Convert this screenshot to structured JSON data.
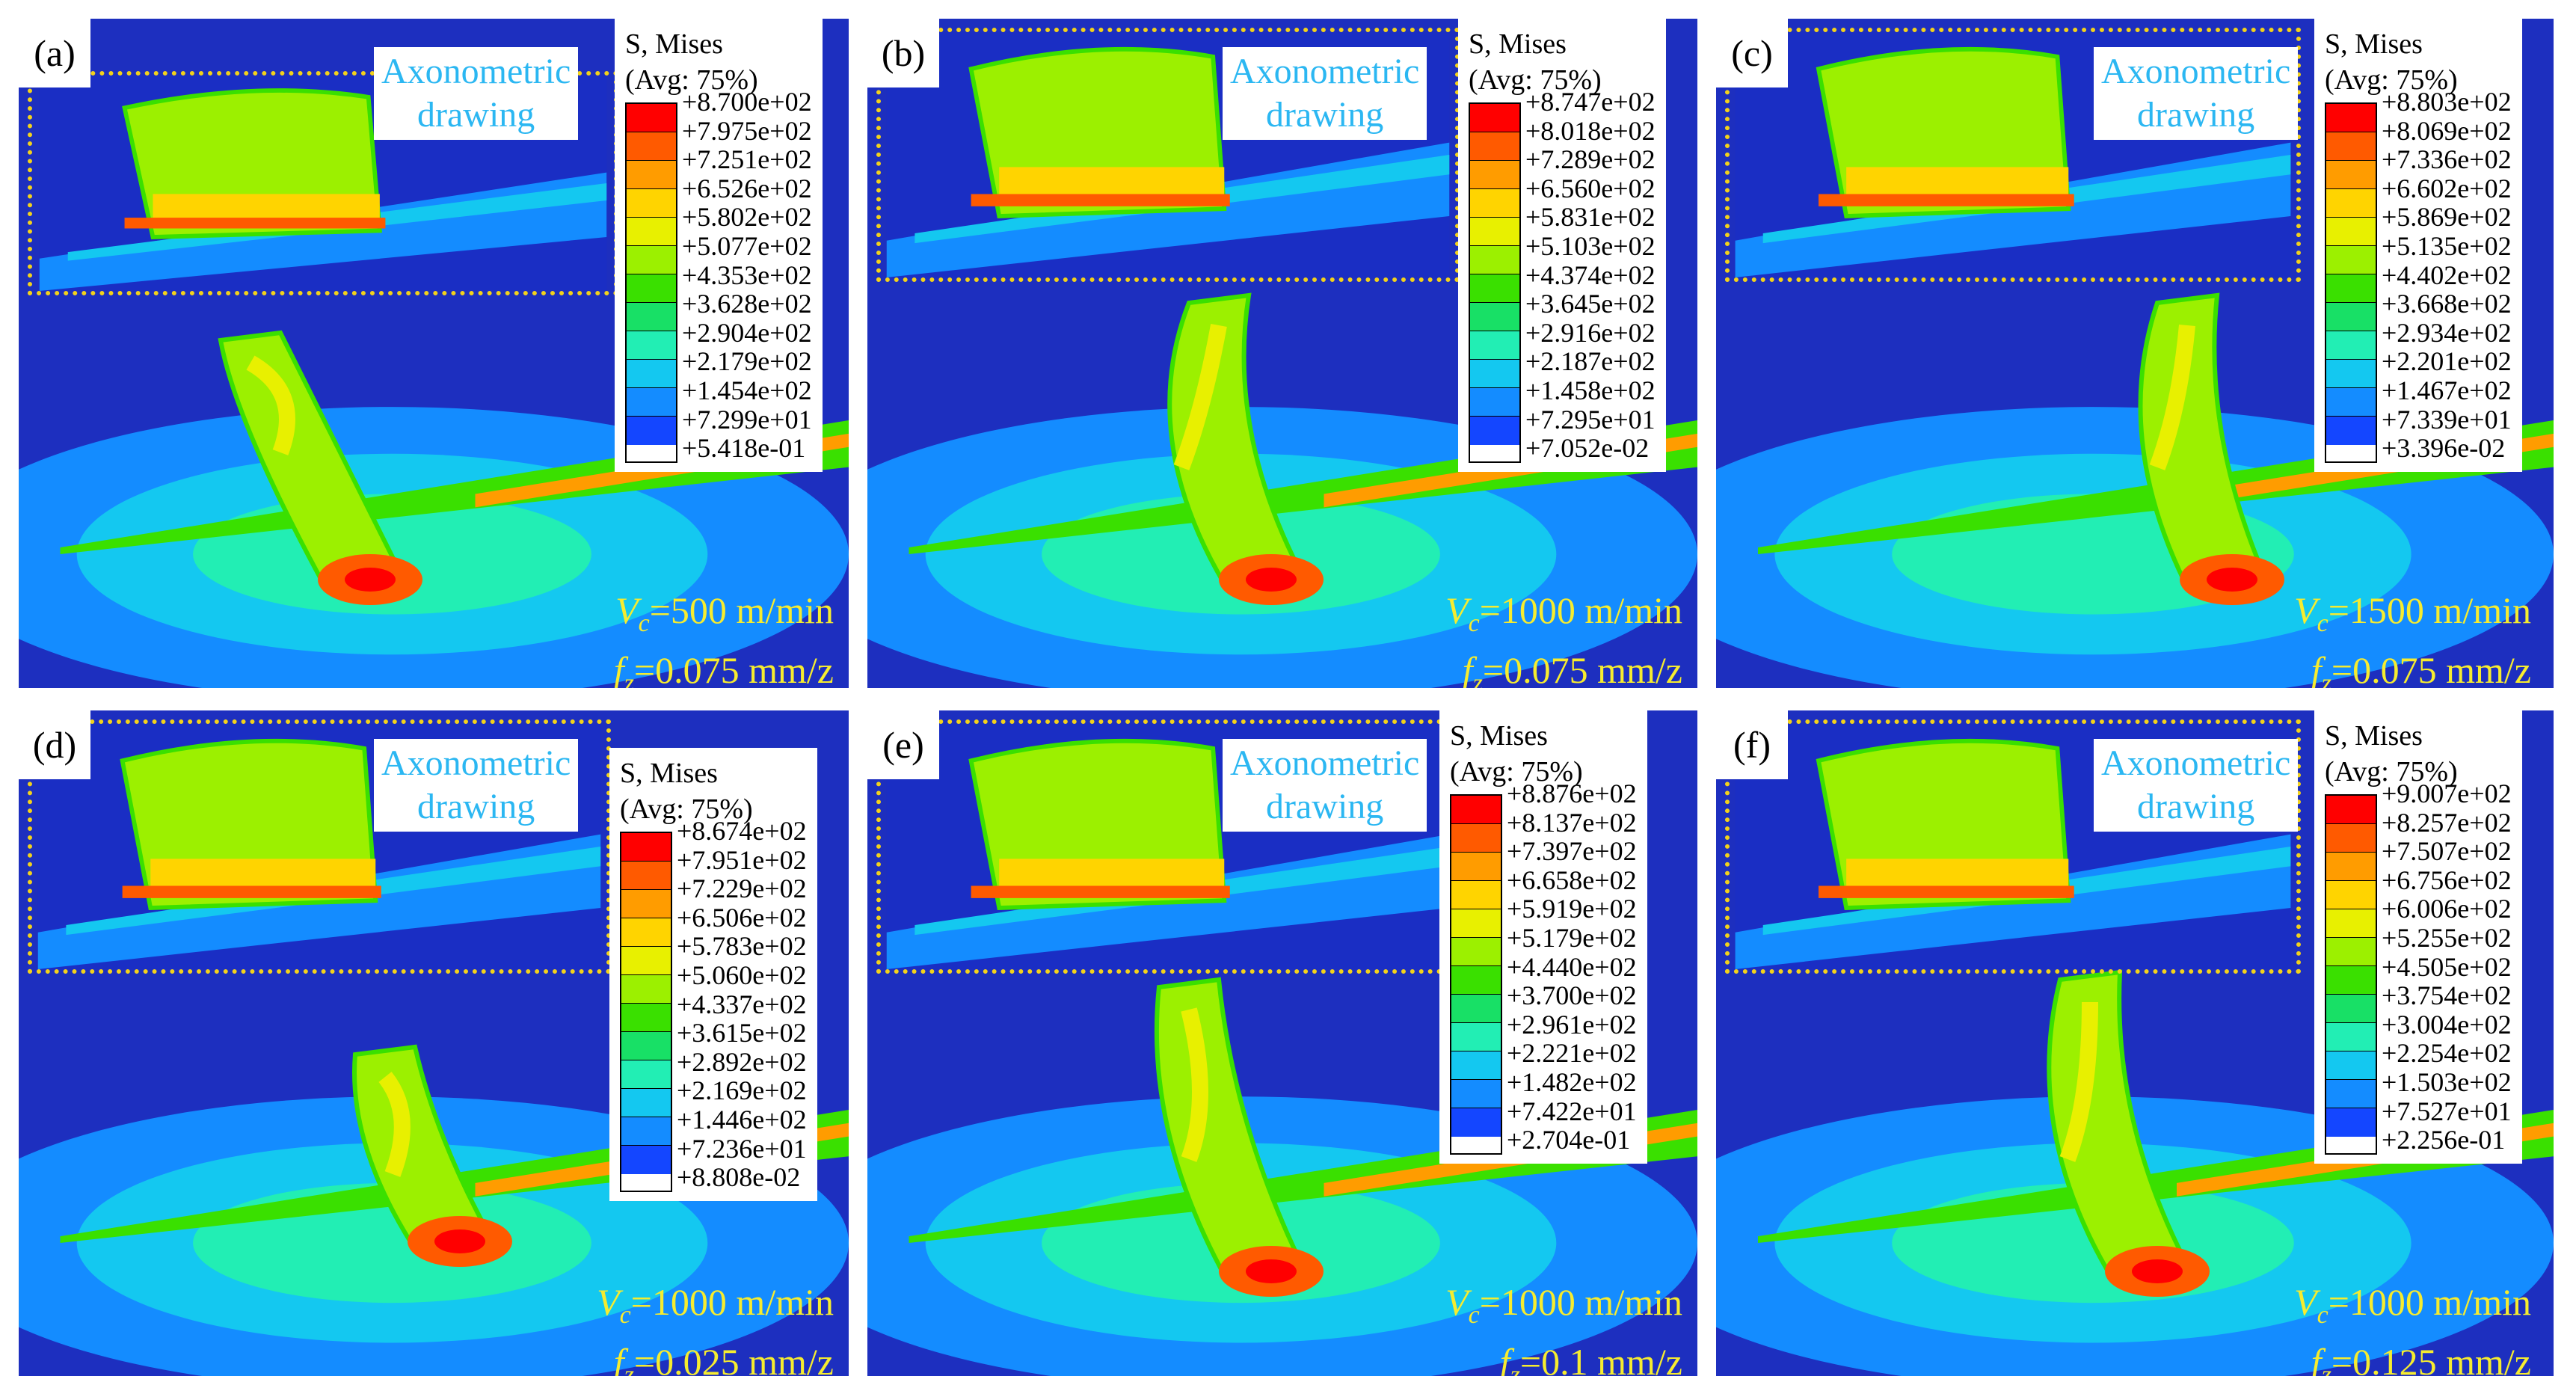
{
  "colors": [
    "#ff0000",
    "#ff5a00",
    "#ff9c00",
    "#ffd400",
    "#e8f000",
    "#9cf000",
    "#3ae000",
    "#18e066",
    "#22eeb4",
    "#14c8f0",
    "#148cff",
    "#1446ff",
    "#1414ff"
  ],
  "panels": [
    {
      "label": "(a)",
      "inset_text_1": "Axonometric",
      "inset_text_2": "drawing",
      "legend_title_1": "S, Mises",
      "legend_title_2": "(Avg: 75%)",
      "values": [
        "+8.700e+02",
        "+7.975e+02",
        "+7.251e+02",
        "+6.526e+02",
        "+5.802e+02",
        "+5.077e+02",
        "+4.353e+02",
        "+3.628e+02",
        "+2.904e+02",
        "+2.179e+02",
        "+1.454e+02",
        "+7.299e+01",
        "+5.418e-01"
      ],
      "vc_sym": "V",
      "vc_sub": "c",
      "vc_val": "=500 m/min",
      "fz_sym": "f",
      "fz_sub": "z",
      "fz_val": "=0.075 mm/z"
    },
    {
      "label": "(b)",
      "inset_text_1": "Axonometric",
      "inset_text_2": "drawing",
      "legend_title_1": "S, Mises",
      "legend_title_2": "(Avg: 75%)",
      "values": [
        "+8.747e+02",
        "+8.018e+02",
        "+7.289e+02",
        "+6.560e+02",
        "+5.831e+02",
        "+5.103e+02",
        "+4.374e+02",
        "+3.645e+02",
        "+2.916e+02",
        "+2.187e+02",
        "+1.458e+02",
        "+7.295e+01",
        "+7.052e-02"
      ],
      "vc_sym": "V",
      "vc_sub": "c",
      "vc_val": "=1000 m/min",
      "fz_sym": "f",
      "fz_sub": "z",
      "fz_val": "=0.075 mm/z"
    },
    {
      "label": "(c)",
      "inset_text_1": "Axonometric",
      "inset_text_2": "drawing",
      "legend_title_1": "S, Mises",
      "legend_title_2": "(Avg: 75%)",
      "values": [
        "+8.803e+02",
        "+8.069e+02",
        "+7.336e+02",
        "+6.602e+02",
        "+5.869e+02",
        "+5.135e+02",
        "+4.402e+02",
        "+3.668e+02",
        "+2.934e+02",
        "+2.201e+02",
        "+1.467e+02",
        "+7.339e+01",
        "+3.396e-02"
      ],
      "vc_sym": "V",
      "vc_sub": "c",
      "vc_val": "=1500 m/min",
      "fz_sym": "f",
      "fz_sub": "z",
      "fz_val": "=0.075 mm/z"
    },
    {
      "label": "(d)",
      "inset_text_1": "Axonometric",
      "inset_text_2": "drawing",
      "legend_title_1": "S, Mises",
      "legend_title_2": "(Avg: 75%)",
      "values": [
        "+8.674e+02",
        "+7.951e+02",
        "+7.229e+02",
        "+6.506e+02",
        "+5.783e+02",
        "+5.060e+02",
        "+4.337e+02",
        "+3.615e+02",
        "+2.892e+02",
        "+2.169e+02",
        "+1.446e+02",
        "+7.236e+01",
        "+8.808e-02"
      ],
      "vc_sym": "V",
      "vc_sub": "c",
      "vc_val": "=1000 m/min",
      "fz_sym": "f",
      "fz_sub": "z",
      "fz_val": "=0.025 mm/z"
    },
    {
      "label": "(e)",
      "inset_text_1": "Axonometric",
      "inset_text_2": "drawing",
      "legend_title_1": "S, Mises",
      "legend_title_2": "(Avg: 75%)",
      "values": [
        "+8.876e+02",
        "+8.137e+02",
        "+7.397e+02",
        "+6.658e+02",
        "+5.919e+02",
        "+5.179e+02",
        "+4.440e+02",
        "+3.700e+02",
        "+2.961e+02",
        "+2.221e+02",
        "+1.482e+02",
        "+7.422e+01",
        "+2.704e-01"
      ],
      "vc_sym": "V",
      "vc_sub": "c",
      "vc_val": "=1000 m/min",
      "fz_sym": "f",
      "fz_sub": "z",
      "fz_val": "=0.1 mm/z"
    },
    {
      "label": "(f)",
      "inset_text_1": "Axonometric",
      "inset_text_2": "drawing",
      "legend_title_1": "S, Mises",
      "legend_title_2": "(Avg: 75%)",
      "values": [
        "+9.007e+02",
        "+8.257e+02",
        "+7.507e+02",
        "+6.756e+02",
        "+6.006e+02",
        "+5.255e+02",
        "+4.505e+02",
        "+3.754e+02",
        "+3.004e+02",
        "+2.254e+02",
        "+1.503e+02",
        "+7.527e+01",
        "+2.256e-01"
      ],
      "vc_sym": "V",
      "vc_sub": "c",
      "vc_val": "=1000 m/min",
      "fz_sym": "f",
      "fz_sub": "z",
      "fz_val": "=0.125 mm/z"
    }
  ]
}
